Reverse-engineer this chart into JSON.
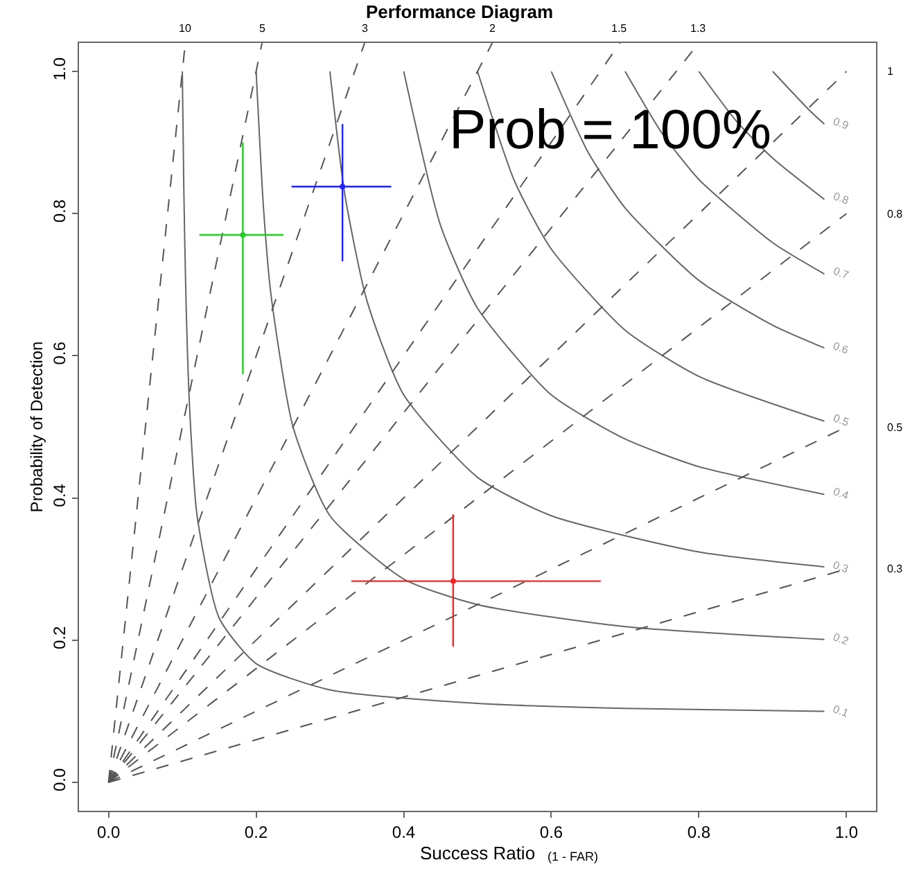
{
  "chart_data": {
    "type": "line",
    "title": "Performance Diagram",
    "xlabel": "Success Ratio",
    "ylabel": "Probability of Detection",
    "annotations": [
      "Prob = 100%",
      "(1 - FAR)"
    ],
    "xlim": [
      -0.04,
      1.04
    ],
    "ylim": [
      -0.04,
      1.04
    ],
    "xticks": [
      {
        "value": 0,
        "label": "0.0"
      },
      {
        "value": 0.2,
        "label": "0.2"
      },
      {
        "value": 0.4,
        "label": "0.4"
      },
      {
        "value": 0.6,
        "label": "0.6"
      },
      {
        "value": 0.8,
        "label": "0.8"
      },
      {
        "value": 1,
        "label": "1.0"
      }
    ],
    "yticks": [
      {
        "value": 0,
        "label": "0.0"
      },
      {
        "value": 0.2,
        "label": "0.2"
      },
      {
        "value": 0.4,
        "label": "0.4"
      },
      {
        "value": 0.6,
        "label": "0.6"
      },
      {
        "value": 0.8,
        "label": "0.8"
      },
      {
        "value": 1,
        "label": "1.0"
      }
    ],
    "grid": false,
    "legend": false,
    "series": [
      {
        "name": "0.1",
        "color": "#666666",
        "line_style": "solid",
        "x": [
          0.1,
          0.102,
          0.105,
          0.11,
          0.12,
          0.15,
          0.2,
          0.3,
          0.5,
          0.7,
          0.97
        ],
        "values": [
          1,
          0.836,
          0.677,
          0.524,
          0.375,
          0.231,
          0.167,
          0.13,
          0.111,
          0.104,
          0.1
        ]
      },
      {
        "name": "0.2",
        "color": "#666666",
        "line_style": "solid",
        "x": [
          0.2,
          0.21,
          0.22,
          0.25,
          0.3,
          0.4,
          0.5,
          0.7,
          0.97
        ],
        "values": [
          1,
          0.808,
          0.687,
          0.5,
          0.375,
          0.286,
          0.25,
          0.219,
          0.201
        ]
      },
      {
        "name": "0.3",
        "color": "#666666",
        "line_style": "solid",
        "x": [
          0.3,
          0.32,
          0.35,
          0.4,
          0.5,
          0.6,
          0.8,
          0.97
        ],
        "values": [
          1,
          0.828,
          0.678,
          0.545,
          0.429,
          0.375,
          0.324,
          0.303
        ]
      },
      {
        "name": "0.4",
        "color": "#666666",
        "line_style": "solid",
        "x": [
          0.4,
          0.45,
          0.5,
          0.6,
          0.7,
          0.8,
          0.97
        ],
        "values": [
          1,
          0.783,
          0.667,
          0.545,
          0.483,
          0.444,
          0.405
        ]
      },
      {
        "name": "0.5",
        "color": "#666666",
        "line_style": "solid",
        "x": [
          0.5,
          0.55,
          0.6,
          0.7,
          0.8,
          0.97
        ],
        "values": [
          1,
          0.846,
          0.75,
          0.636,
          0.571,
          0.508
        ]
      },
      {
        "name": "0.6",
        "color": "#666666",
        "line_style": "solid",
        "x": [
          0.6,
          0.65,
          0.7,
          0.8,
          0.9,
          0.97
        ],
        "values": [
          1,
          0.886,
          0.808,
          0.706,
          0.643,
          0.611
        ]
      },
      {
        "name": "0.7",
        "color": "#666666",
        "line_style": "solid",
        "x": [
          0.7,
          0.75,
          0.8,
          0.9,
          0.97
        ],
        "values": [
          1,
          0.913,
          0.848,
          0.759,
          0.715
        ]
      },
      {
        "name": "0.8",
        "color": "#666666",
        "line_style": "solid",
        "x": [
          0.8,
          0.85,
          0.9,
          0.97
        ],
        "values": [
          1,
          0.931,
          0.878,
          0.82
        ]
      },
      {
        "name": "0.9",
        "color": "#666666",
        "line_style": "solid",
        "x": [
          0.9,
          0.95,
          0.97
        ],
        "values": [
          1,
          0.945,
          0.926
        ]
      },
      {
        "name": "10",
        "color": "#555555",
        "line_style": "dashed",
        "x": [
          0,
          0.104
        ],
        "values": [
          0,
          1.04
        ]
      },
      {
        "name": "5",
        "color": "#555555",
        "line_style": "dashed",
        "x": [
          0,
          0.208
        ],
        "values": [
          0,
          1.04
        ]
      },
      {
        "name": "3",
        "color": "#555555",
        "line_style": "dashed",
        "x": [
          0,
          0.347
        ],
        "values": [
          0,
          1.04
        ]
      },
      {
        "name": "2",
        "color": "#555555",
        "line_style": "dashed",
        "x": [
          0,
          0.52
        ],
        "values": [
          0,
          1.04
        ]
      },
      {
        "name": "1.5",
        "color": "#555555",
        "line_style": "dashed",
        "x": [
          0,
          0.693
        ],
        "values": [
          0,
          1.04
        ]
      },
      {
        "name": "1.3",
        "color": "#555555",
        "line_style": "dashed",
        "x": [
          0,
          0.8
        ],
        "values": [
          0,
          1.04
        ]
      },
      {
        "name": "1",
        "color": "#555555",
        "line_style": "dashed",
        "x": [
          0,
          1
        ],
        "values": [
          0,
          1
        ]
      },
      {
        "name": "0.8",
        "color": "#555555",
        "line_style": "dashed",
        "x": [
          0,
          1
        ],
        "values": [
          0,
          0.8
        ]
      },
      {
        "name": "0.5",
        "color": "#555555",
        "line_style": "dashed",
        "x": [
          0,
          1
        ],
        "values": [
          0,
          0.5
        ]
      },
      {
        "name": "0.3",
        "color": "#555555",
        "line_style": "dashed",
        "x": [
          0,
          1
        ],
        "values": [
          0,
          0.3
        ]
      },
      {
        "type": "scatter",
        "marker": "circle",
        "color": "#22cc22",
        "x": [
          0.182
        ],
        "values": [
          0.77
        ],
        "errors": [
          [
            0.574,
            0.9
          ]
        ],
        "xerrors": [
          [
            0.123,
            0.237
          ]
        ]
      },
      {
        "type": "scatter",
        "marker": "circle",
        "color": "#2222ff",
        "x": [
          0.317
        ],
        "values": [
          0.838
        ],
        "errors": [
          [
            0.733,
            0.926
          ]
        ],
        "xerrors": [
          [
            0.248,
            0.383
          ]
        ]
      },
      {
        "type": "scatter",
        "marker": "circle",
        "color": "#ff2222",
        "x": [
          0.467
        ],
        "values": [
          0.283
        ],
        "errors": [
          [
            0.191,
            0.377
          ]
        ],
        "xerrors": [
          [
            0.329,
            0.667
          ]
        ]
      }
    ]
  }
}
